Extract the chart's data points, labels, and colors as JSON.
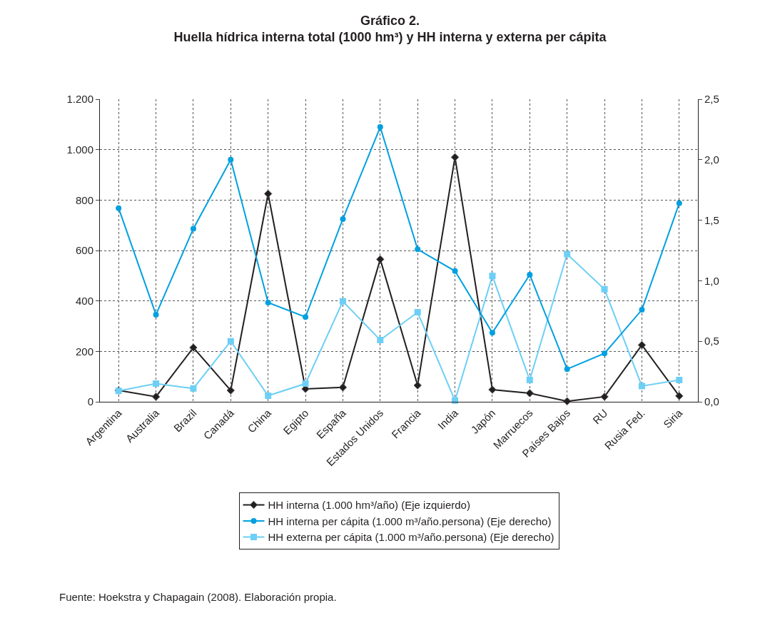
{
  "chart_data": {
    "type": "line",
    "title": "Gráfico 2.",
    "subtitle": "Huella hídrica interna total (1000 hm³) y HH interna y externa per cápita",
    "categories": [
      "Argentina",
      "Australia",
      "Brazil",
      "Canadá",
      "China",
      "Egipto",
      "España",
      "Estados Unidos",
      "Francia",
      "India",
      "Japón",
      "Marruecos",
      "Países Bajos",
      "RU",
      "Rusia Fed.",
      "Siria"
    ],
    "series": [
      {
        "name": "HH interna (1.000 hm³/año) (Eje izquierdo)",
        "color": "#231f20",
        "marker": "diamond",
        "values": [
          45,
          20,
          215,
          45,
          825,
          51,
          57,
          565,
          65,
          970,
          48,
          34,
          2,
          20,
          225,
          23
        ]
      },
      {
        "name": "HH interna per cápita (1.000 m³/año.persona) (Eje derecho)",
        "color": "#00a0e0",
        "marker": "circle",
        "axis": "y2",
        "values": [
          1.6,
          0.72,
          1.43,
          2.0,
          0.82,
          0.7,
          1.51,
          2.27,
          1.26,
          1.08,
          0.57,
          1.05,
          0.27,
          0.4,
          0.76,
          1.64
        ]
      },
      {
        "name": "HH externa per cápita (1.000 m³/año.persona) (Eje derecho)",
        "color": "#6dcff6",
        "marker": "square",
        "axis": "y2",
        "values": [
          0.09,
          0.15,
          0.11,
          0.5,
          0.05,
          0.15,
          0.83,
          0.51,
          0.74,
          0.01,
          1.04,
          0.18,
          1.22,
          0.93,
          0.13,
          0.18
        ]
      }
    ],
    "ylim": [
      0,
      1200
    ],
    "yticks": [
      0,
      200,
      400,
      600,
      800,
      {
        "value": 1000,
        "label": "1.000"
      },
      {
        "value": 1200,
        "label": "1.200"
      }
    ],
    "y2lim": [
      0,
      2.5
    ],
    "y2ticks": [
      {
        "value": 0,
        "label": "0,0"
      },
      {
        "value": 0.5,
        "label": "0,5"
      },
      {
        "value": 1,
        "label": "1,0"
      },
      {
        "value": 1.5,
        "label": "1,5"
      },
      {
        "value": 2,
        "label": "2,0"
      },
      {
        "value": 2.5,
        "label": "2,5"
      }
    ],
    "grid": true,
    "legend": "bottom",
    "line_style": "solid",
    "annotations": [
      "Fuente: Hoekstra y Chapagain (2008). Elaboración propia."
    ]
  }
}
